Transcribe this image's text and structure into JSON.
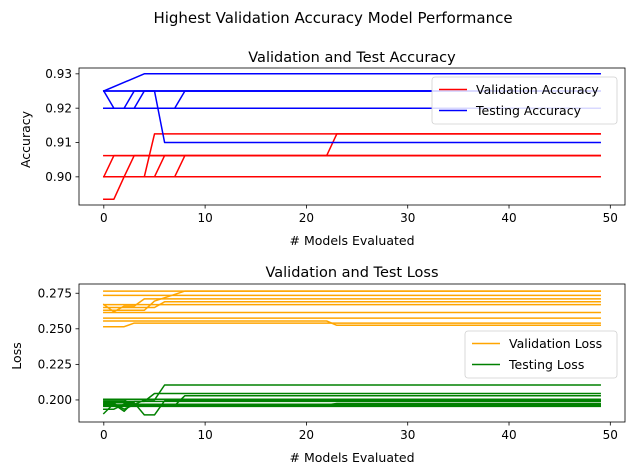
{
  "suptitle": "Highest Validation Accuracy Model Performance",
  "chart_data": [
    {
      "type": "line",
      "title": "Validation and Test Accuracy",
      "xlabel": "# Models Evaluated",
      "ylabel": "Accuracy",
      "xlim": [
        -2.45,
        51.45
      ],
      "ylim": [
        0.8918,
        0.9317
      ],
      "xticks": [
        0,
        10,
        20,
        30,
        40,
        50
      ],
      "yticks": [
        0.9,
        0.91,
        0.92,
        0.93
      ],
      "ytick_labels": [
        "0.90",
        "0.91",
        "0.92",
        "0.93"
      ],
      "legend": "top-right",
      "grid": false,
      "series": [
        {
          "name": "Validation Accuracy",
          "color": "#ff0000",
          "lines": [
            [
              [
                0,
                0.8935
              ],
              [
                1,
                0.8935
              ],
              [
                2,
                0.9
              ],
              [
                49,
                0.9
              ]
            ],
            [
              [
                0,
                0.9
              ],
              [
                2,
                0.9
              ],
              [
                3,
                0.9062
              ],
              [
                49,
                0.9062
              ]
            ],
            [
              [
                0,
                0.9
              ],
              [
                7,
                0.9
              ],
              [
                8,
                0.9062
              ],
              [
                49,
                0.9062
              ]
            ],
            [
              [
                0,
                0.9
              ],
              [
                4,
                0.9
              ],
              [
                5,
                0.9125
              ],
              [
                49,
                0.9125
              ]
            ],
            [
              [
                0,
                0.9
              ],
              [
                5,
                0.9
              ],
              [
                6,
                0.9062
              ],
              [
                49,
                0.9062
              ]
            ],
            [
              [
                0,
                0.9062
              ],
              [
                22,
                0.9062
              ],
              [
                23,
                0.9125
              ],
              [
                49,
                0.9125
              ]
            ],
            [
              [
                0,
                0.9
              ],
              [
                1,
                0.9062
              ],
              [
                49,
                0.9062
              ]
            ]
          ]
        },
        {
          "name": "Testing Accuracy",
          "color": "#0000ff",
          "lines": [
            [
              [
                0,
                0.925
              ],
              [
                1,
                0.92
              ],
              [
                2,
                0.92
              ],
              [
                3,
                0.925
              ],
              [
                49,
                0.925
              ]
            ],
            [
              [
                0,
                0.925
              ],
              [
                4,
                0.93
              ],
              [
                49,
                0.93
              ]
            ],
            [
              [
                0,
                0.92
              ],
              [
                7,
                0.92
              ],
              [
                8,
                0.925
              ],
              [
                49,
                0.925
              ]
            ],
            [
              [
                0,
                0.925
              ],
              [
                5,
                0.925
              ],
              [
                6,
                0.91
              ],
              [
                49,
                0.91
              ]
            ],
            [
              [
                0,
                0.92
              ],
              [
                3,
                0.92
              ],
              [
                4,
                0.925
              ],
              [
                49,
                0.925
              ]
            ],
            [
              [
                0,
                0.92
              ],
              [
                49,
                0.92
              ]
            ],
            [
              [
                0,
                0.925
              ],
              [
                49,
                0.925
              ]
            ]
          ]
        }
      ]
    },
    {
      "type": "line",
      "title": "Validation and Test Loss",
      "xlabel": "# Models Evaluated",
      "ylabel": "Loss",
      "xlim": [
        -2.45,
        51.45
      ],
      "ylim": [
        0.1845,
        0.2815
      ],
      "xticks": [
        0,
        10,
        20,
        30,
        40,
        50
      ],
      "yticks": [
        0.2,
        0.225,
        0.25,
        0.275
      ],
      "ytick_labels": [
        "0.200",
        "0.225",
        "0.250",
        "0.275"
      ],
      "legend": "center-right",
      "grid": false,
      "series": [
        {
          "name": "Validation Loss",
          "color": "#ffa500",
          "lines": [
            [
              [
                0,
                0.2765
              ],
              [
                49,
                0.2765
              ]
            ],
            [
              [
                0,
                0.2735
              ],
              [
                49,
                0.2735
              ]
            ],
            [
              [
                0,
                0.267
              ],
              [
                1,
                0.262
              ],
              [
                2,
                0.266
              ],
              [
                3,
                0.266
              ],
              [
                4,
                0.271
              ],
              [
                49,
                0.271
              ]
            ],
            [
              [
                0,
                0.265
              ],
              [
                5,
                0.265
              ],
              [
                6,
                0.269
              ],
              [
                49,
                0.269
              ]
            ],
            [
              [
                0,
                0.263
              ],
              [
                4,
                0.263
              ],
              [
                5,
                0.2695
              ],
              [
                8,
                0.2765
              ],
              [
                49,
                0.2765
              ]
            ],
            [
              [
                0,
                0.267
              ],
              [
                49,
                0.267
              ]
            ],
            [
              [
                0,
                0.2615
              ],
              [
                49,
                0.2615
              ]
            ],
            [
              [
                0,
                0.2575
              ],
              [
                49,
                0.2575
              ]
            ],
            [
              [
                0,
                0.2555
              ],
              [
                22,
                0.2555
              ],
              [
                23,
                0.2525
              ],
              [
                49,
                0.2525
              ]
            ],
            [
              [
                0,
                0.2515
              ],
              [
                2,
                0.2515
              ],
              [
                3,
                0.254
              ],
              [
                49,
                0.254
              ]
            ]
          ]
        },
        {
          "name": "Testing Loss",
          "color": "#008000",
          "lines": [
            [
              [
                0,
                0.2005
              ],
              [
                49,
                0.2005
              ]
            ],
            [
              [
                0,
                0.199
              ],
              [
                4,
                0.199
              ],
              [
                5,
                0.2045
              ],
              [
                49,
                0.2045
              ]
            ],
            [
              [
                0,
                0.1905
              ],
              [
                1,
                0.1975
              ],
              [
                2,
                0.1935
              ],
              [
                4,
                0.2
              ],
              [
                5,
                0.2
              ],
              [
                6,
                0.2105
              ],
              [
                49,
                0.2105
              ]
            ],
            [
              [
                0,
                0.1935
              ],
              [
                1,
                0.1935
              ],
              [
                2,
                0.197
              ],
              [
                49,
                0.197
              ]
            ],
            [
              [
                0,
                0.198
              ],
              [
                3,
                0.198
              ],
              [
                4,
                0.1895
              ],
              [
                5,
                0.1895
              ],
              [
                6,
                0.1995
              ],
              [
                49,
                0.1995
              ]
            ],
            [
              [
                0,
                0.197
              ],
              [
                1,
                0.197
              ],
              [
                2,
                0.192
              ],
              [
                3,
                0.199
              ],
              [
                49,
                0.199
              ]
            ],
            [
              [
                0,
                0.1955
              ],
              [
                49,
                0.1955
              ]
            ],
            [
              [
                0,
                0.196
              ],
              [
                7,
                0.196
              ],
              [
                8,
                0.203
              ],
              [
                49,
                0.203
              ]
            ],
            [
              [
                0,
                0.2
              ],
              [
                2,
                0.2
              ],
              [
                3,
                0.196
              ],
              [
                49,
                0.196
              ]
            ],
            [
              [
                0,
                0.1965
              ],
              [
                22,
                0.1965
              ],
              [
                23,
                0.1975
              ],
              [
                49,
                0.1975
              ]
            ]
          ]
        }
      ]
    }
  ]
}
